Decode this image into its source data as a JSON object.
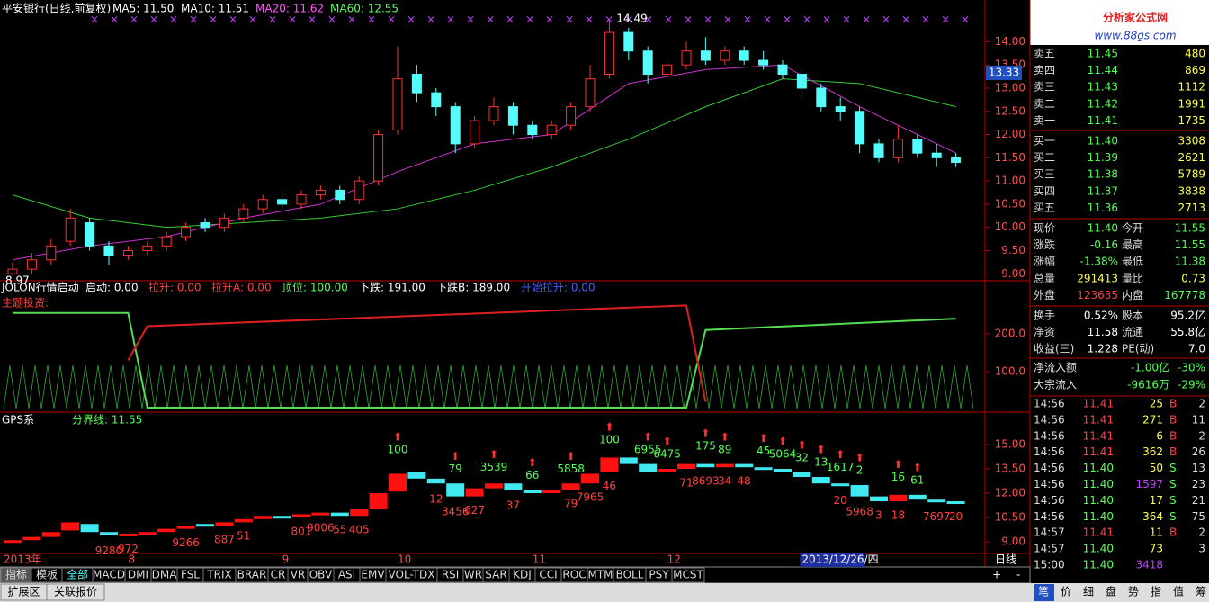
{
  "header": {
    "stock": "平安银行(日线,前复权)",
    "ma": [
      {
        "label": "MA5: 11.50",
        "color": "#ffffff"
      },
      {
        "label": "MA10: 11.51",
        "color": "#ffffff"
      },
      {
        "label": "MA20: 11.62",
        "color": "#ff55ff"
      },
      {
        "label": "MA60: 12.55",
        "color": "#55ff55"
      }
    ]
  },
  "price_chart": {
    "ylim": [
      8.85,
      14.9
    ],
    "yticks": [
      {
        "value": 9,
        "label": "9.00"
      },
      {
        "value": 9.5,
        "label": "9.50"
      },
      {
        "value": 10,
        "label": "10.00"
      },
      {
        "value": 10.5,
        "label": "10.50"
      },
      {
        "value": 11,
        "label": "11.00"
      },
      {
        "value": 11.5,
        "label": "11.50"
      },
      {
        "value": 12,
        "label": "12.00"
      },
      {
        "value": 12.5,
        "label": "12.50"
      },
      {
        "value": 13,
        "label": "13.00"
      },
      {
        "value": 13.5,
        "label": "13.50"
      },
      {
        "value": 14,
        "label": "14.00"
      }
    ],
    "current": {
      "value": 13.33,
      "label": "13.33"
    },
    "high_label": "14.49",
    "low_label": "8.97",
    "candles": {
      "open": [
        9.0,
        9.1,
        9.3,
        9.7,
        10.1,
        9.6,
        9.4,
        9.5,
        9.6,
        9.8,
        10.1,
        10.0,
        10.2,
        10.4,
        10.6,
        10.5,
        10.7,
        10.8,
        10.6,
        11.0,
        12.1,
        13.3,
        12.9,
        12.6,
        11.8,
        12.3,
        12.6,
        12.2,
        12.0,
        12.2,
        12.6,
        13.3,
        14.2,
        13.8,
        13.3,
        13.5,
        13.8,
        13.6,
        13.8,
        13.6,
        13.5,
        13.3,
        13.0,
        12.6,
        12.5,
        11.8,
        11.5,
        11.9,
        11.6,
        11.5
      ],
      "close": [
        9.1,
        9.3,
        9.6,
        10.2,
        9.6,
        9.4,
        9.5,
        9.6,
        9.8,
        10.0,
        10.0,
        10.2,
        10.4,
        10.6,
        10.5,
        10.7,
        10.8,
        10.6,
        11.0,
        12.0,
        13.2,
        12.9,
        12.6,
        11.8,
        12.3,
        12.6,
        12.2,
        12.0,
        12.2,
        12.6,
        13.2,
        14.2,
        13.8,
        13.3,
        13.5,
        13.8,
        13.6,
        13.8,
        13.6,
        13.5,
        13.3,
        13.0,
        12.6,
        12.5,
        11.8,
        11.5,
        11.9,
        11.6,
        11.5,
        11.4
      ],
      "high": [
        9.25,
        9.45,
        9.75,
        10.4,
        10.2,
        9.7,
        9.6,
        9.7,
        9.9,
        10.1,
        10.2,
        10.3,
        10.5,
        10.7,
        10.8,
        10.8,
        10.9,
        10.9,
        11.1,
        12.1,
        13.9,
        13.5,
        13.0,
        12.7,
        12.4,
        12.8,
        12.7,
        12.3,
        12.3,
        12.7,
        13.5,
        14.49,
        14.3,
        13.9,
        13.6,
        14.0,
        14.1,
        13.9,
        13.9,
        13.8,
        13.6,
        13.4,
        13.1,
        12.8,
        12.6,
        11.9,
        12.2,
        12.0,
        11.8,
        11.6
      ],
      "low": [
        8.97,
        9.0,
        9.2,
        9.6,
        9.5,
        9.2,
        9.3,
        9.4,
        9.5,
        9.7,
        9.9,
        9.9,
        10.1,
        10.3,
        10.4,
        10.4,
        10.6,
        10.5,
        10.5,
        10.9,
        12.0,
        12.7,
        12.4,
        11.6,
        11.7,
        12.2,
        12.0,
        11.9,
        11.9,
        12.1,
        12.5,
        13.2,
        13.6,
        13.1,
        13.2,
        13.4,
        13.5,
        13.5,
        13.5,
        13.4,
        13.2,
        12.8,
        12.5,
        12.3,
        11.6,
        11.4,
        11.4,
        11.5,
        11.3,
        11.3
      ]
    },
    "ma20": {
      "x": [
        0,
        4,
        8,
        12,
        16,
        20,
        24,
        28,
        32,
        36,
        40,
        44,
        49
      ],
      "values": [
        9.3,
        9.6,
        9.8,
        10.2,
        10.5,
        11.2,
        11.8,
        12.0,
        13.1,
        13.4,
        13.5,
        12.6,
        11.6
      ]
    },
    "ma60": {
      "x": [
        0,
        4,
        8,
        12,
        16,
        20,
        24,
        28,
        32,
        36,
        40,
        44,
        49
      ],
      "values": [
        10.7,
        10.2,
        10.0,
        10.1,
        10.2,
        10.4,
        10.8,
        11.3,
        11.9,
        12.6,
        13.2,
        13.1,
        12.6
      ]
    }
  },
  "indicator": {
    "title": "JOLON行情启动",
    "items": [
      {
        "label": "启动: 0.00",
        "color": "#ffffff"
      },
      {
        "label": "拉升: 0.00",
        "color": "#ff4040"
      },
      {
        "label": "拉升A: 0.00",
        "color": "#ff4040"
      },
      {
        "label": "顶位: 100.00",
        "color": "#55ff55"
      },
      {
        "label": "下跌: 191.00",
        "color": "#ffffff"
      },
      {
        "label": "下跌B: 189.00",
        "color": "#ffffff"
      },
      {
        "label": "开始拉升: 0.00",
        "color": "#4060ff"
      }
    ],
    "theme": "主题投资:",
    "ylim": [
      -7,
      340
    ],
    "yticks": [
      {
        "value": 200,
        "label": "200.0"
      },
      {
        "value": 100,
        "label": "100.0"
      }
    ],
    "red": {
      "x": [
        6,
        7,
        35,
        36
      ],
      "values": [
        130,
        220,
        275,
        20
      ]
    },
    "green": {
      "x": [
        0,
        6,
        7,
        35,
        36,
        49
      ],
      "values": [
        255,
        255,
        5,
        5,
        210,
        240
      ]
    }
  },
  "gps": {
    "title": "GPS系",
    "divider": "分界线: 11.55",
    "ylim": [
      8.28,
      17
    ],
    "yticks": [
      {
        "value": 9,
        "label": "9.00"
      },
      {
        "value": 10.5,
        "label": "10.50"
      },
      {
        "value": 12,
        "label": "12.00"
      },
      {
        "value": 13.5,
        "label": "13.50"
      },
      {
        "value": 15,
        "label": "15.00"
      }
    ],
    "top_labels": [
      {
        "text": "100",
        "index": 20
      },
      {
        "text": "79",
        "index": 23
      },
      {
        "text": "3539",
        "index": 25
      },
      {
        "text": "66",
        "index": 27
      },
      {
        "text": "5858",
        "index": 29
      },
      {
        "text": "100",
        "index": 31
      },
      {
        "text": "6955",
        "index": 33
      },
      {
        "text": "6475",
        "index": 34
      },
      {
        "text": "175",
        "index": 36
      },
      {
        "text": "89",
        "index": 37
      },
      {
        "text": "45",
        "index": 39
      },
      {
        "text": "5064",
        "index": 40
      },
      {
        "text": "32",
        "index": 41
      },
      {
        "text": "13",
        "index": 42
      },
      {
        "text": "1617",
        "index": 43
      },
      {
        "text": "2",
        "index": 44
      },
      {
        "text": "16",
        "index": 46
      },
      {
        "text": "61",
        "index": 47
      }
    ],
    "bottom_labels": [
      {
        "text": "9280",
        "index": 5
      },
      {
        "text": "972",
        "index": 6
      },
      {
        "text": "9266",
        "index": 9
      },
      {
        "text": "887",
        "index": 11
      },
      {
        "text": "51",
        "index": 12
      },
      {
        "text": "801",
        "index": 15
      },
      {
        "text": "9006",
        "index": 16
      },
      {
        "text": "55",
        "index": 17
      },
      {
        "text": "405",
        "index": 18
      },
      {
        "text": "12",
        "index": 22
      },
      {
        "text": "3456",
        "index": 23
      },
      {
        "text": "627",
        "index": 24
      },
      {
        "text": "37",
        "index": 26
      },
      {
        "text": "79",
        "index": 29
      },
      {
        "text": "7965",
        "index": 30
      },
      {
        "text": "46",
        "index": 31
      },
      {
        "text": "71",
        "index": 35
      },
      {
        "text": "8693",
        "index": 36
      },
      {
        "text": "34",
        "index": 37
      },
      {
        "text": "48",
        "index": 38
      },
      {
        "text": "20",
        "index": 43
      },
      {
        "text": "5968",
        "index": 44
      },
      {
        "text": "3",
        "index": 45
      },
      {
        "text": "18",
        "index": 46
      },
      {
        "text": "7697",
        "index": 48
      },
      {
        "text": "20",
        "index": 49
      }
    ]
  },
  "date_axis": {
    "labels": [
      {
        "label": "2013年",
        "index": 0
      },
      {
        "label": "8",
        "index": 6
      },
      {
        "label": "9",
        "index": 14
      },
      {
        "label": "10",
        "index": 20
      },
      {
        "label": "11",
        "index": 27
      },
      {
        "label": "12",
        "index": 34
      }
    ],
    "cursor": {
      "label": "2013/12/26/四",
      "index": 41
    },
    "period": "日线",
    "plus": "+",
    "minus": "-"
  },
  "tabs": [
    "指标",
    "模板",
    "全部",
    "MACD",
    "DMI",
    "DMA",
    "FSL",
    "TRIX",
    "BRAR",
    "CR",
    "VR",
    "OBV",
    "ASI",
    "EMV",
    "VOL-TDX",
    "RSI",
    "WR",
    "SAR",
    "KDJ",
    "CCI",
    "ROC",
    "MTM",
    "BOLL",
    "PSY",
    "MCST"
  ],
  "bottom_tabs": [
    "扩展区",
    "关联报价"
  ],
  "panel": {
    "logo": "分析家公式网",
    "url": "www.88gs.com",
    "asks": [
      [
        "卖五",
        "11.45",
        "480"
      ],
      [
        "卖四",
        "11.44",
        "869"
      ],
      [
        "卖三",
        "11.43",
        "1112"
      ],
      [
        "卖二",
        "11.42",
        "1991"
      ],
      [
        "卖一",
        "11.41",
        "1735"
      ]
    ],
    "bids": [
      [
        "买一",
        "11.40",
        "3308"
      ],
      [
        "买二",
        "11.39",
        "2621"
      ],
      [
        "买三",
        "11.38",
        "5789"
      ],
      [
        "买四",
        "11.37",
        "3838"
      ],
      [
        "买五",
        "11.36",
        "2713"
      ]
    ],
    "stats": [
      [
        "现价",
        "11.40",
        "今开",
        "11.55"
      ],
      [
        "涨跌",
        "-0.16",
        "最高",
        "11.55"
      ],
      [
        "涨幅",
        "-1.38%",
        "最低",
        "11.38"
      ],
      [
        "总量",
        "291413",
        "量比",
        "0.73"
      ],
      [
        "外盘",
        "123635",
        "内盘",
        "167778"
      ]
    ],
    "info": [
      [
        "换手",
        "0.52%",
        "股本",
        "95.2亿"
      ],
      [
        "净资",
        "11.58",
        "流通",
        "55.8亿"
      ],
      [
        "收益(三)",
        "1.228",
        "PE(动)",
        "7.0"
      ]
    ],
    "flows": [
      [
        "净流入额",
        "-1.00亿",
        "-30%"
      ],
      [
        "大宗流入",
        "-9616万",
        "-29%"
      ]
    ],
    "ticks": [
      [
        "14:56",
        "11.41",
        "25",
        "B",
        "2"
      ],
      [
        "14:56",
        "11.41",
        "271",
        "B",
        "11"
      ],
      [
        "14:56",
        "11.41",
        "6",
        "B",
        "2"
      ],
      [
        "14:56",
        "11.41",
        "362",
        "B",
        "26"
      ],
      [
        "14:56",
        "11.40",
        "50",
        "S",
        "13"
      ],
      [
        "14:56",
        "11.40",
        "1597",
        "S",
        "23"
      ],
      [
        "14:56",
        "11.40",
        "17",
        "S",
        "21"
      ],
      [
        "14:56",
        "11.40",
        "364",
        "S",
        "75"
      ],
      [
        "14:57",
        "11.41",
        "11",
        "B",
        "2"
      ],
      [
        "14:57",
        "11.40",
        "73",
        "3"
      ],
      [
        "15:00",
        "11.40",
        "3418"
      ]
    ],
    "footer": [
      "笔",
      "价",
      "细",
      "盘",
      "势",
      "指",
      "值",
      "筹"
    ]
  }
}
